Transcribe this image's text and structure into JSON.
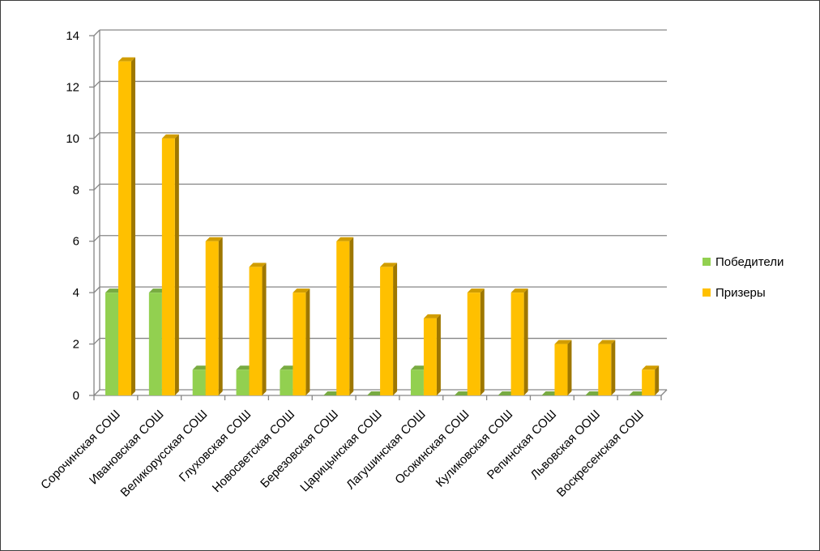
{
  "chart_data": {
    "type": "bar",
    "title": "",
    "xlabel": "",
    "ylabel": "",
    "ylim": [
      0,
      14
    ],
    "yticks": [
      0,
      2,
      4,
      6,
      8,
      10,
      12,
      14
    ],
    "grid": true,
    "legend_position": "right",
    "three_d": true,
    "categories": [
      "Сорочинская СОШ",
      "Ивановская СОШ",
      "Великорусская СОШ",
      "Глуховская СОШ",
      "Новосветская СОШ",
      "Березовская СОШ",
      "Царицынская СОШ",
      "Лагушинская СОШ",
      "Осокинская СОШ",
      "Куликовская СОШ",
      "Репинская СОШ",
      "Львовская ООШ",
      "Воскресенская СОШ"
    ],
    "series": [
      {
        "name": "Победители",
        "color": "#92d050",
        "values": [
          4,
          4,
          1,
          1,
          1,
          0,
          0,
          1,
          0,
          0,
          0,
          0,
          0
        ]
      },
      {
        "name": "Призеры",
        "color": "#ffc000",
        "values": [
          13,
          10,
          6,
          5,
          4,
          6,
          5,
          3,
          4,
          4,
          2,
          2,
          1
        ]
      }
    ]
  }
}
